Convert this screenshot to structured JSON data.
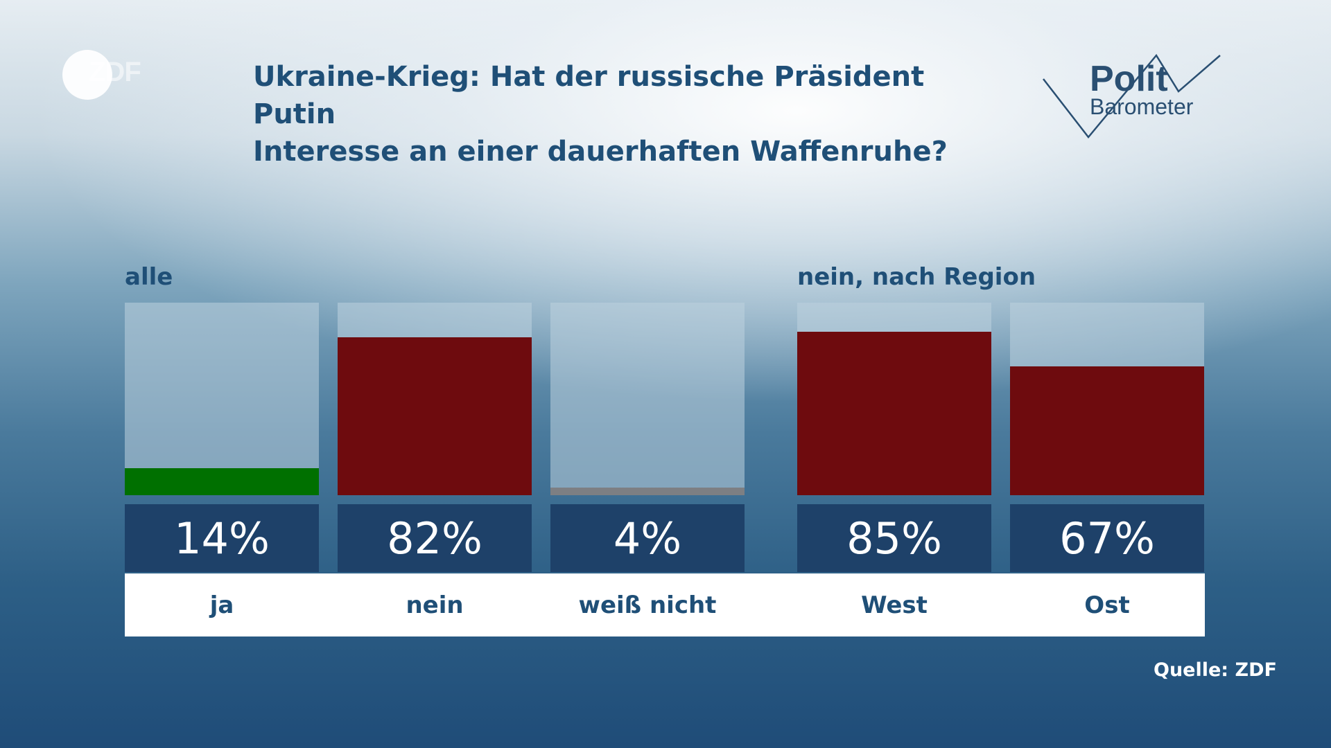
{
  "logo": {
    "text": "ZDF"
  },
  "header": {
    "title_line1": "Ukraine-Krieg: Hat der russische Präsident Putin",
    "title_line2": "Interesse an einer dauerhaften Waffenruhe?"
  },
  "brand": {
    "line1": "Polit",
    "line2": "Barometer"
  },
  "groups": {
    "left": "alle",
    "right": "nein, nach Region"
  },
  "source": "Quelle: ZDF",
  "colors": {
    "ja": "#007000",
    "nein": "#6e0b0e",
    "weiss_nicht": "#7d7f83",
    "value_box": "#1e4169",
    "text": "#1f4f77"
  },
  "chart_data": {
    "type": "bar",
    "title": "Ukraine-Krieg: Hat der russische Präsident Putin Interesse an einer dauerhaften Waffenruhe?",
    "ylim": [
      0,
      100
    ],
    "groups": [
      {
        "label": "alle",
        "categories": [
          "ja",
          "nein",
          "weiß nicht"
        ],
        "values": [
          14,
          82,
          4
        ],
        "display": [
          "14%",
          "82%",
          "4%"
        ]
      },
      {
        "label": "nein, nach Region",
        "categories": [
          "West",
          "Ost"
        ],
        "values": [
          85,
          67
        ],
        "display": [
          "85%",
          "67%"
        ]
      }
    ]
  }
}
